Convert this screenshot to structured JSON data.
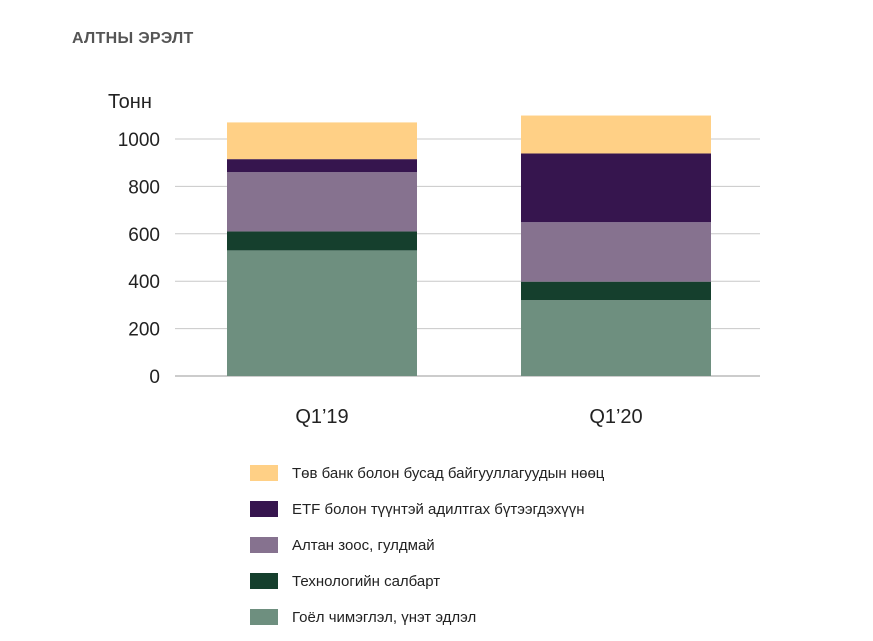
{
  "chart_data": {
    "type": "bar",
    "stacked": true,
    "title": "АЛТНЫ ЭРЭЛТ",
    "ylabel": "Тонн",
    "xlabel": "",
    "ylim": [
      0,
      1000
    ],
    "yticks": [
      0,
      200,
      400,
      600,
      800,
      1000
    ],
    "grid": true,
    "legend_position": "bottom",
    "categories": [
      "Q1’19",
      "Q1’20"
    ],
    "series": [
      {
        "name": "Гоёл чимэглэл, үнэт эдлэл",
        "color": "#6e8f7f",
        "values": [
          530,
          320
        ]
      },
      {
        "name": "Технологийн салбарт",
        "color": "#153f2d",
        "values": [
          80,
          78
        ]
      },
      {
        "name": "Алтан зоос, гулдмай",
        "color": "#86728f",
        "values": [
          250,
          251
        ]
      },
      {
        "name": "ETF болон түүнтэй адилтгах бүтээгдэхүүн",
        "color": "#36154e",
        "values": [
          55,
          290
        ]
      },
      {
        "name": "Төв банк болон бусад байгууллагуудын нөөц",
        "color": "#ffd086",
        "values": [
          155,
          160
        ]
      }
    ]
  }
}
